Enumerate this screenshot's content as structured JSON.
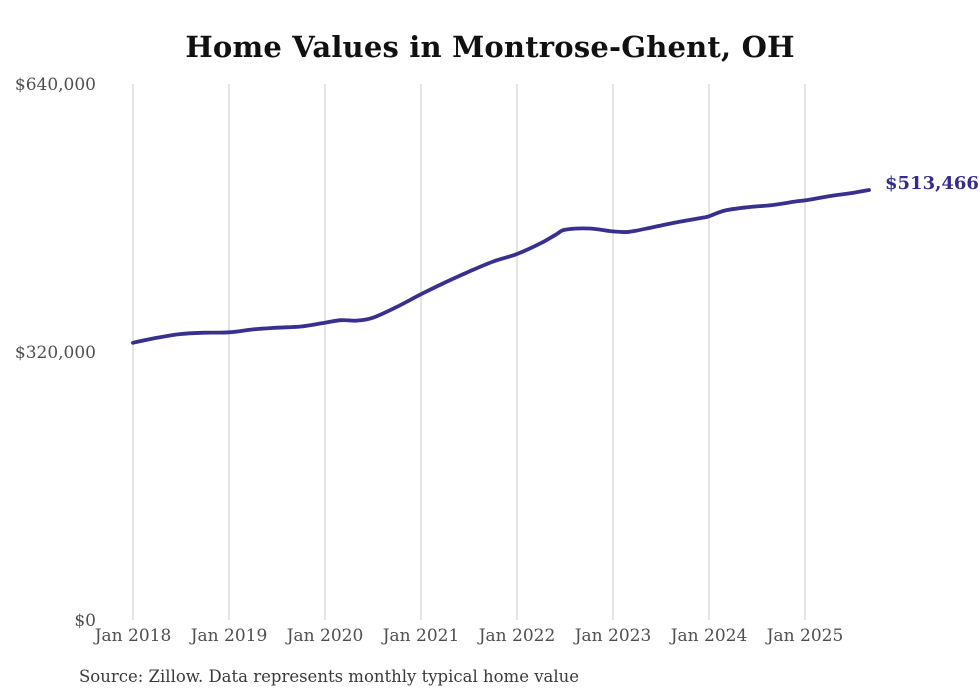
{
  "title": "Home Values in Montrose-Ghent, OH",
  "source_note": "Source: Zillow. Data represents monthly typical home value",
  "colors": {
    "line": "#38308e",
    "end_label": "#332d88",
    "grid": "#c9c9c9",
    "axis_label": "#4f4f4f",
    "title": "#111111",
    "background": "#ffffff"
  },
  "chart_data": {
    "type": "line",
    "title": "Home Values in Montrose-Ghent, OH",
    "series_name": "Monthly typical home value",
    "end_label": "$513,466",
    "end_value": 513466,
    "ylim": [
      0,
      640000
    ],
    "y_ticks": [
      0,
      320000,
      640000
    ],
    "y_tick_labels": [
      "$0",
      "$320,000",
      "$640,000"
    ],
    "x_tick_labels": [
      "Jan 2018",
      "Jan 2019",
      "Jan 2020",
      "Jan 2021",
      "Jan 2022",
      "Jan 2023",
      "Jan 2024",
      "Jan 2025"
    ],
    "grid": "vertical-only",
    "legend": "none",
    "points": [
      {
        "date": "2018-01",
        "value": 331000
      },
      {
        "date": "2018-04",
        "value": 337000
      },
      {
        "date": "2018-07",
        "value": 341500
      },
      {
        "date": "2018-10",
        "value": 343000
      },
      {
        "date": "2019-01",
        "value": 343500
      },
      {
        "date": "2019-04",
        "value": 347000
      },
      {
        "date": "2019-07",
        "value": 349000
      },
      {
        "date": "2019-10",
        "value": 350500
      },
      {
        "date": "2020-01",
        "value": 355000
      },
      {
        "date": "2020-03",
        "value": 358000
      },
      {
        "date": "2020-05",
        "value": 357500
      },
      {
        "date": "2020-07",
        "value": 361000
      },
      {
        "date": "2020-10",
        "value": 374000
      },
      {
        "date": "2021-01",
        "value": 389000
      },
      {
        "date": "2021-04",
        "value": 403000
      },
      {
        "date": "2021-07",
        "value": 416000
      },
      {
        "date": "2021-10",
        "value": 428000
      },
      {
        "date": "2022-01",
        "value": 437000
      },
      {
        "date": "2022-04",
        "value": 450000
      },
      {
        "date": "2022-06",
        "value": 461000
      },
      {
        "date": "2022-07",
        "value": 466000
      },
      {
        "date": "2022-10",
        "value": 467500
      },
      {
        "date": "2023-01",
        "value": 464000
      },
      {
        "date": "2023-03",
        "value": 463500
      },
      {
        "date": "2023-06",
        "value": 469000
      },
      {
        "date": "2023-09",
        "value": 475000
      },
      {
        "date": "2023-12",
        "value": 480000
      },
      {
        "date": "2024-01",
        "value": 482000
      },
      {
        "date": "2024-03",
        "value": 489000
      },
      {
        "date": "2024-06",
        "value": 493000
      },
      {
        "date": "2024-09",
        "value": 495500
      },
      {
        "date": "2024-12",
        "value": 500000
      },
      {
        "date": "2025-01",
        "value": 501000
      },
      {
        "date": "2025-04",
        "value": 506000
      },
      {
        "date": "2025-07",
        "value": 510000
      },
      {
        "date": "2025-09",
        "value": 513466
      }
    ]
  }
}
